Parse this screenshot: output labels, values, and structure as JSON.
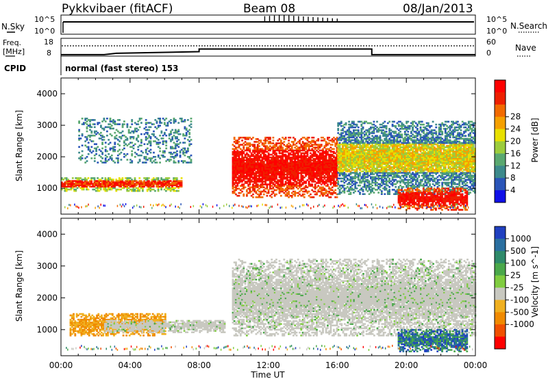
{
  "header": {
    "title": "Pykkvibaer (fitACF)",
    "beam": "Beam 08",
    "date": "08/Jan/2013"
  },
  "info_panels": {
    "nsky_label": "N.Sky",
    "nsky_ticks": [
      "10^5",
      "10^0"
    ],
    "nsearch_label": "N.Search",
    "nsearch_ticks": [
      "10^5",
      "10^0"
    ],
    "freq_label_1": "Freq.",
    "freq_label_2": "[MHz]",
    "freq_ticks": [
      "18",
      "8"
    ],
    "nave_label": "Nave",
    "nave_ticks": [
      "60",
      "0"
    ],
    "cpid_label": "CPID",
    "cpid_text": "normal (fast stereo) 153"
  },
  "chart_data": [
    {
      "type": "heatmap",
      "name": "power",
      "ylabel": "Slant Range [km]",
      "yticks": [
        "1000",
        "2000",
        "3000",
        "4000"
      ],
      "ylim": [
        180,
        4500
      ],
      "xlim_hours": [
        0,
        24
      ],
      "colorbar": {
        "label": "Power [dB]",
        "ticks": [
          "4",
          "8",
          "12",
          "16",
          "20",
          "24",
          "28"
        ],
        "colors": [
          "#1010e8",
          "#2a55b8",
          "#3d8a8c",
          "#5aa870",
          "#9ccc3c",
          "#e8e000",
          "#f5a000",
          "#f26a00",
          "#ee2000",
          "#ff0000"
        ]
      },
      "echo_regions": [
        {
          "t": [
            0.0,
            7.0
          ],
          "range": [
            900,
            1350
          ],
          "level": "medium-high"
        },
        {
          "t": [
            1.0,
            7.5
          ],
          "range": [
            1800,
            3200
          ],
          "level": "low-sparse"
        },
        {
          "t": [
            9.9,
            16.0
          ],
          "range": [
            700,
            2600
          ],
          "level": "high"
        },
        {
          "t": [
            16.0,
            24.0
          ],
          "range": [
            800,
            3100
          ],
          "level": "low-medium"
        },
        {
          "t": [
            19.5,
            23.5
          ],
          "range": [
            300,
            1000
          ],
          "level": "high"
        }
      ]
    },
    {
      "type": "heatmap",
      "name": "velocity",
      "ylabel": "Slant Range [km]",
      "yticks": [
        "1000",
        "2000",
        "3000",
        "4000"
      ],
      "ylim": [
        180,
        4500
      ],
      "xlim_hours": [
        0,
        24
      ],
      "xticks": [
        "00:00",
        "04:00",
        "08:00",
        "12:00",
        "16:00",
        "20:00",
        "00:00"
      ],
      "xlabel": "Time UT",
      "colorbar": {
        "label": "Velocity [m s^-1]",
        "ticks": [
          "1000",
          "500",
          "100",
          "25",
          "-25",
          "-100",
          "-500",
          "-1000"
        ],
        "colors": [
          "#2040c0",
          "#2a6fa0",
          "#2e8a6a",
          "#4aa84a",
          "#80cc40",
          "#c8c8c0",
          "#f0b020",
          "#f08a00",
          "#f05000",
          "#ff0000"
        ]
      },
      "echo_regions": [
        {
          "t": [
            0.5,
            6.0
          ],
          "range": [
            800,
            1500
          ],
          "level": "negative"
        },
        {
          "t": [
            2.5,
            9.5
          ],
          "range": [
            900,
            1300
          ],
          "level": "near-zero"
        },
        {
          "t": [
            9.9,
            24.0
          ],
          "range": [
            800,
            3200
          ],
          "level": "near-zero"
        },
        {
          "t": [
            19.5,
            23.5
          ],
          "range": [
            300,
            1000
          ],
          "level": "positive-mixed"
        }
      ]
    }
  ],
  "freq_series": {
    "t": [
      0,
      2.5,
      3.2,
      8.0,
      8.0,
      18.0,
      18.0,
      24.0
    ],
    "mhz": [
      8.8,
      8.8,
      9.6,
      10.5,
      12.0,
      12.0,
      8.8,
      8.8
    ]
  }
}
